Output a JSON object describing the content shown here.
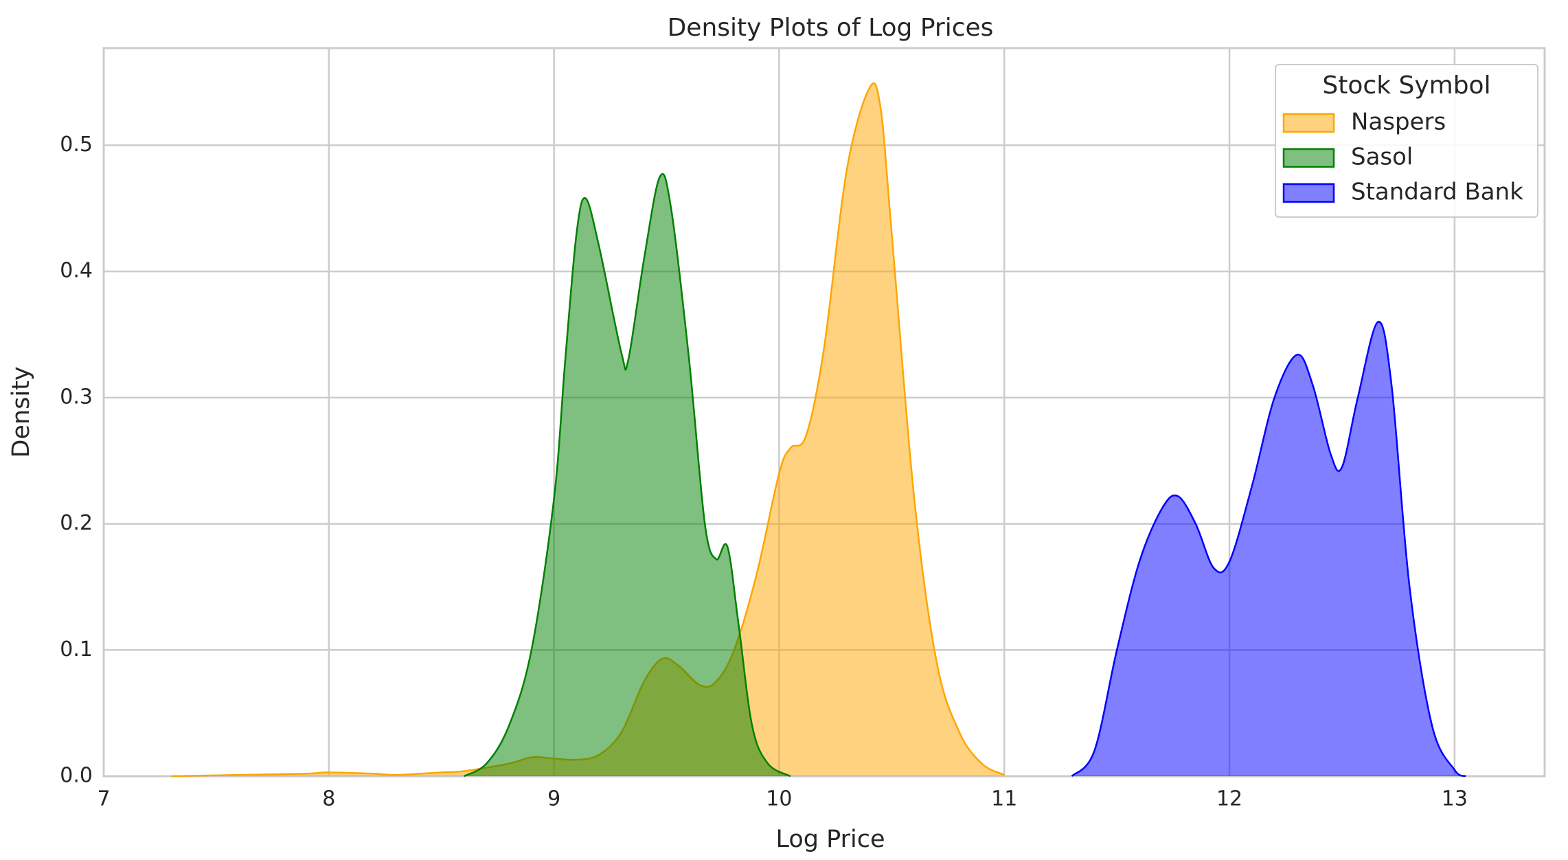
{
  "chart_data": {
    "type": "kde",
    "title": "Density Plots of Log Prices",
    "x_label": "Log Price",
    "y_label": "Density",
    "xlim": [
      7,
      13.4
    ],
    "ylim": [
      0,
      0.577
    ],
    "xticks": [
      7,
      8,
      9,
      10,
      11,
      12,
      13
    ],
    "yticks": [
      {
        "value": 0,
        "label": "0.0"
      },
      0.1,
      0.2,
      0.3,
      0.4,
      0.5
    ],
    "grid": true,
    "legend_title": "Stock Symbol",
    "legend_position": "upper right",
    "fill_opacity": 0.5,
    "series": [
      {
        "name": "Naspers",
        "color": "#ffa500",
        "x": [
          7.3,
          7.6,
          7.9,
          8.0,
          8.2,
          8.3,
          8.5,
          8.6,
          8.8,
          8.9,
          9.0,
          9.1,
          9.2,
          9.3,
          9.4,
          9.48,
          9.55,
          9.65,
          9.72,
          9.8,
          9.9,
          10.0,
          10.05,
          10.12,
          10.2,
          10.3,
          10.4,
          10.45,
          10.5,
          10.6,
          10.7,
          10.8,
          10.9,
          11.0
        ],
        "values": [
          0,
          0.001,
          0.002,
          0.003,
          0.002,
          0.001,
          0.003,
          0.004,
          0.01,
          0.015,
          0.014,
          0.013,
          0.017,
          0.035,
          0.075,
          0.093,
          0.088,
          0.072,
          0.075,
          0.1,
          0.16,
          0.24,
          0.26,
          0.27,
          0.34,
          0.48,
          0.545,
          0.53,
          0.43,
          0.22,
          0.09,
          0.035,
          0.01,
          0.001
        ]
      },
      {
        "name": "Sasol",
        "color": "#008000",
        "x": [
          8.6,
          8.7,
          8.8,
          8.9,
          9.0,
          9.05,
          9.1,
          9.14,
          9.2,
          9.3,
          9.33,
          9.4,
          9.47,
          9.52,
          9.6,
          9.67,
          9.72,
          9.77,
          9.82,
          9.88,
          9.95,
          10.05
        ],
        "values": [
          0,
          0.01,
          0.04,
          0.1,
          0.22,
          0.33,
          0.43,
          0.458,
          0.42,
          0.335,
          0.33,
          0.41,
          0.475,
          0.45,
          0.33,
          0.2,
          0.172,
          0.182,
          0.12,
          0.04,
          0.01,
          0
        ]
      },
      {
        "name": "Standard Bank",
        "color": "#0000ff",
        "x": [
          11.3,
          11.4,
          11.5,
          11.6,
          11.7,
          11.77,
          11.85,
          11.93,
          12.0,
          12.1,
          12.2,
          12.3,
          12.37,
          12.45,
          12.5,
          12.57,
          12.66,
          12.72,
          12.8,
          12.9,
          13.0,
          13.05
        ],
        "values": [
          0,
          0.02,
          0.1,
          0.17,
          0.212,
          0.222,
          0.2,
          0.165,
          0.17,
          0.23,
          0.3,
          0.334,
          0.31,
          0.255,
          0.245,
          0.3,
          0.36,
          0.31,
          0.15,
          0.04,
          0.005,
          0
        ]
      }
    ]
  }
}
